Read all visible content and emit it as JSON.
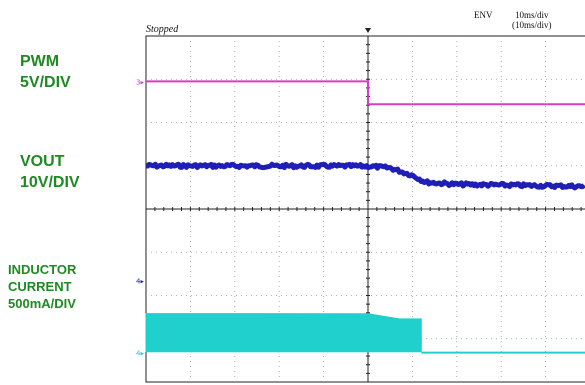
{
  "header": {
    "status": "Stopped",
    "acq_mode": "ENV",
    "timebase": "10ms/div",
    "timebase_sub": "(10ms/div)"
  },
  "channels": [
    {
      "id": "pwm",
      "lines": [
        "PWM",
        "5V/DIV"
      ],
      "color": "#d63cc8",
      "marker": "3"
    },
    {
      "id": "vout",
      "lines": [
        "VOUT",
        "10V/DIV"
      ],
      "color": "#1f1fb8",
      "marker": ""
    },
    {
      "id": "inductor",
      "lines": [
        "INDUCTOR",
        "CURRENT",
        "500mA/DIV"
      ],
      "color": "#20d0cc",
      "marker": "4"
    }
  ],
  "chart_data": {
    "type": "line",
    "title": "",
    "grid": true,
    "x": {
      "divisions": 10,
      "unit": "ms/div",
      "per_div": 10,
      "range": [
        0,
        100
      ]
    },
    "y": {
      "divisions": 8
    },
    "trigger_time_ms": 50,
    "series": [
      {
        "name": "PWM",
        "scale": "5V/DIV",
        "points": [
          [
            0,
            6.95
          ],
          [
            50,
            6.95
          ],
          [
            50,
            6.42
          ],
          [
            100,
            6.42
          ]
        ]
      },
      {
        "name": "VOUT",
        "scale": "10V/DIV",
        "points": [
          [
            0,
            5.0
          ],
          [
            50,
            4.99
          ],
          [
            55,
            4.95
          ],
          [
            60,
            4.78
          ],
          [
            63,
            4.62
          ],
          [
            70,
            4.57
          ],
          [
            100,
            4.52
          ]
        ],
        "noise_band_div": 0.08
      },
      {
        "name": "INDUCTOR CURRENT",
        "scale": "500mA/DIV",
        "envelope_top": [
          [
            0,
            1.58
          ],
          [
            50,
            1.58
          ],
          [
            57,
            1.46
          ],
          [
            62,
            1.46
          ],
          [
            62,
            0.72
          ]
        ],
        "envelope_bottom": [
          [
            0,
            0.7
          ],
          [
            62,
            0.7
          ]
        ],
        "baseline": [
          [
            62,
            0.68
          ],
          [
            100,
            0.68
          ]
        ]
      }
    ]
  }
}
